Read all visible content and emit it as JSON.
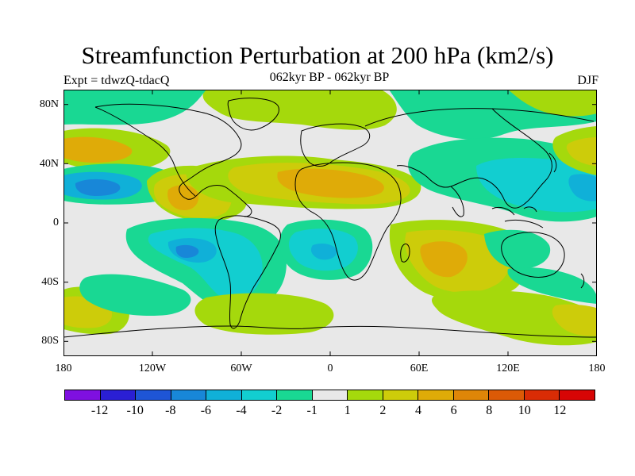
{
  "title": "Streamfunction Perturbation at 200 hPa (km2/s)",
  "subtitle_left": "Expt = tdwzQ-tdacQ",
  "subtitle_center": "062kyr BP - 062kyr BP",
  "subtitle_right": "DJF",
  "lat_labels": [
    "80N",
    "40N",
    "0",
    "40S",
    "80S"
  ],
  "lon_labels": [
    "180",
    "120W",
    "60W",
    "0",
    "60E",
    "120E",
    "180"
  ],
  "colorbar": {
    "colors": [
      "#7f10e0",
      "#2a1fd4",
      "#1e55d6",
      "#1887d8",
      "#10b0d8",
      "#12ced0",
      "#19d893",
      "#e8e8e8",
      "#a5d90c",
      "#cdcc0a",
      "#dfab08",
      "#df8608",
      "#dc5a06",
      "#d92c05",
      "#d70505"
    ],
    "labels": [
      "-12",
      "-10",
      "-8",
      "-6",
      "-4",
      "-2",
      "-1",
      "1",
      "2",
      "4",
      "6",
      "8",
      "10",
      "12"
    ]
  },
  "map_data": {
    "background_color": "#e8e8e8",
    "colors": {
      "band_pos_1_2": "#a5d90c",
      "band_neg_1_2": "#19d893",
      "band_pos_2_4": "#cdcc0a",
      "band_neg_2_4": "#12ced0",
      "band_pos_4_6": "#dfab08",
      "band_neg_4_6": "#10b0d8",
      "band_neg_6_8": "#1887d8"
    }
  }
}
